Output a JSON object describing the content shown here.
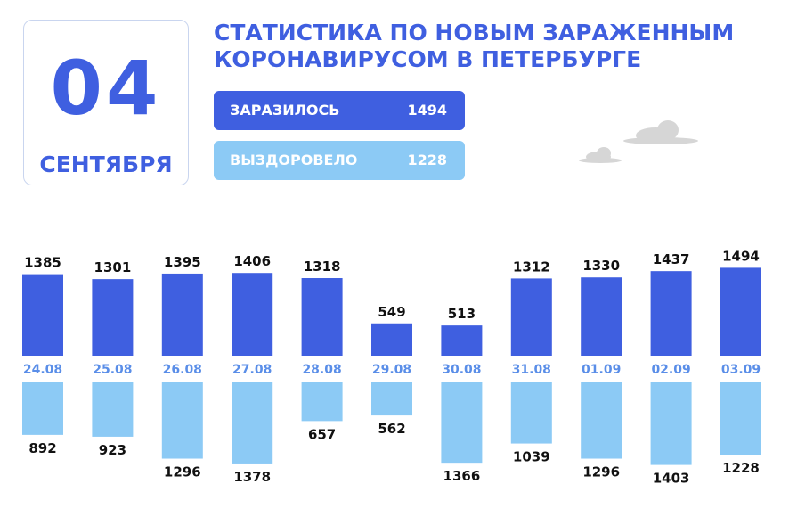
{
  "header": {
    "day": "04",
    "month": "СЕНТЯБРЯ",
    "title_line1": "СТАТИСТИКА ПО НОВЫМ ЗАРАЖЕННЫМ",
    "title_line2": "КОРОНАВИРУСОМ В ПЕТЕРБУРГЕ"
  },
  "summary": {
    "infected_label": "ЗАРАЗИЛОСЬ",
    "infected_value": "1494",
    "recovered_label": "ВЫЗДОРОВЕЛО",
    "recovered_value": "1228"
  },
  "colors": {
    "infected": "#3f5fe0",
    "recovered": "#8ccaf5",
    "date_label": "#5a8ee8",
    "value_text": "#111111",
    "cloud": "#d6d6d6"
  },
  "icons": [
    "cloud-icon",
    "cloud-icon"
  ],
  "chart_data": {
    "type": "bar",
    "categories": [
      "24.08",
      "25.08",
      "26.08",
      "27.08",
      "28.08",
      "29.08",
      "30.08",
      "31.08",
      "01.09",
      "02.09",
      "03.09"
    ],
    "series": [
      {
        "name": "ЗАРАЗИЛОСЬ",
        "values": [
          1385,
          1301,
          1395,
          1406,
          1318,
          549,
          513,
          1312,
          1330,
          1437,
          1494
        ]
      },
      {
        "name": "ВЫЗДОРОВЕЛО",
        "values": [
          892,
          923,
          1296,
          1378,
          657,
          562,
          1366,
          1039,
          1296,
          1403,
          1228
        ]
      }
    ],
    "layout": "mirrored",
    "grid": false,
    "legend": "top"
  }
}
